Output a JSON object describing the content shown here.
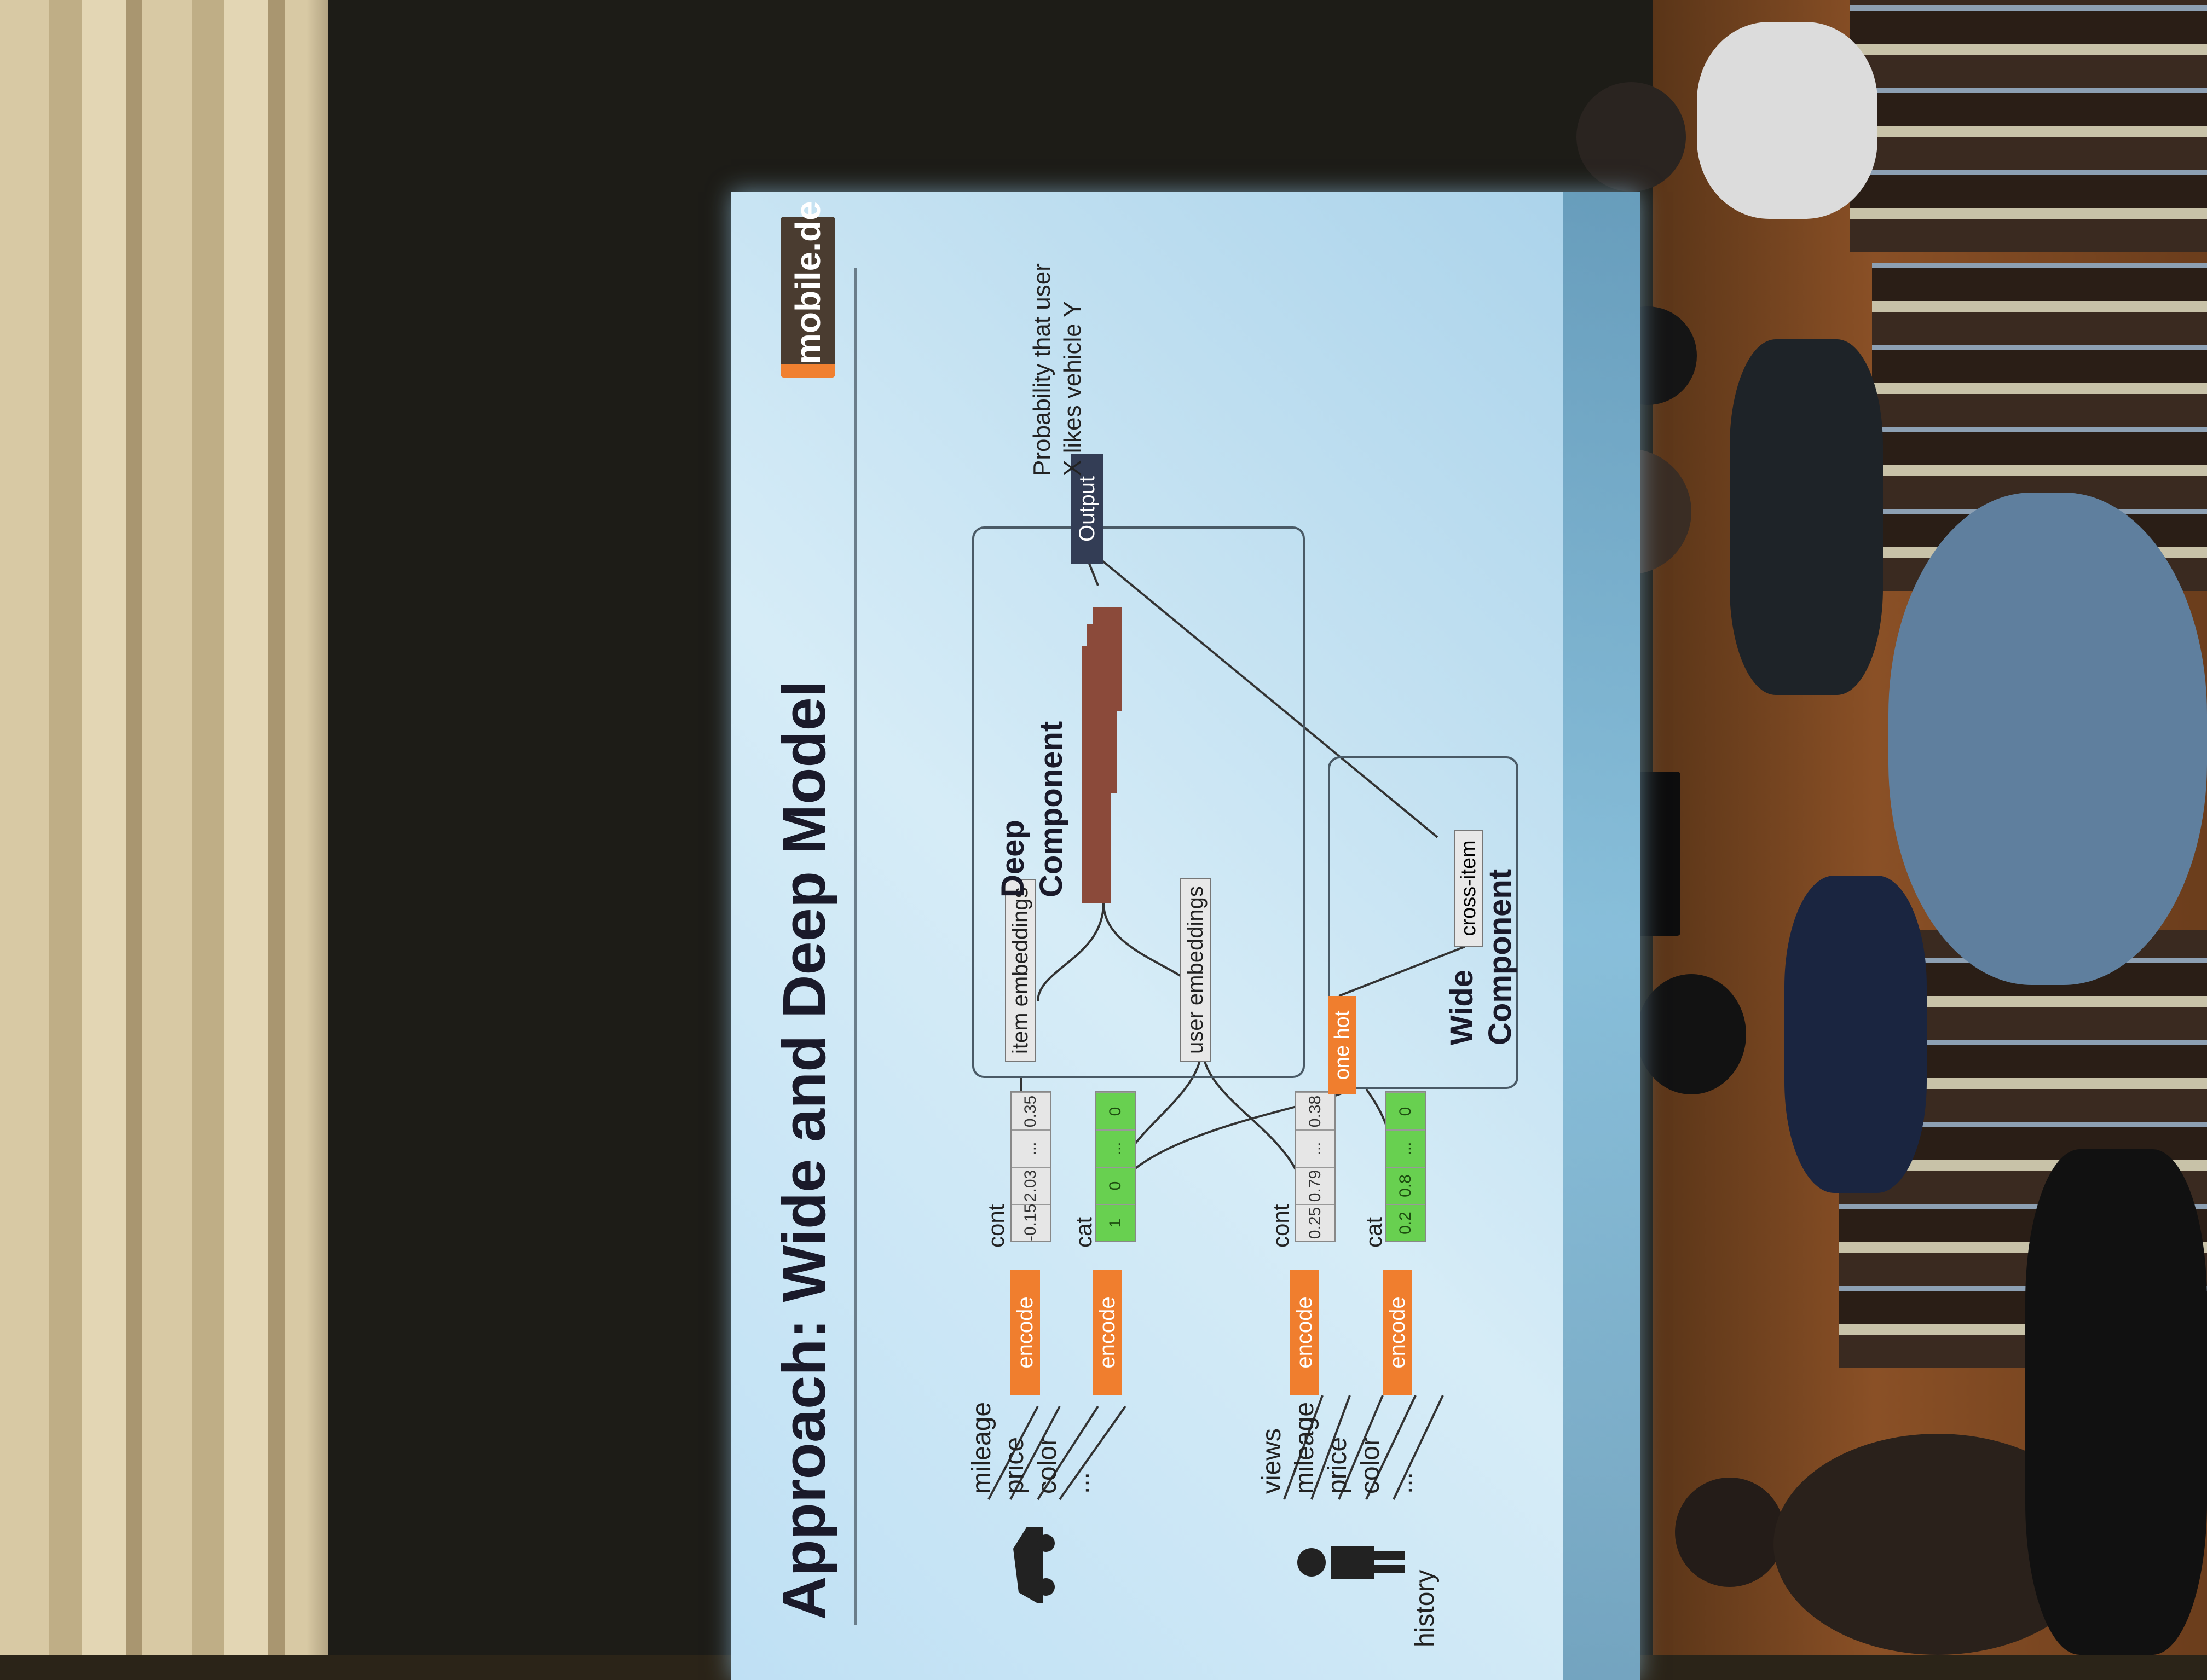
{
  "slide": {
    "title": "Approach: Wide and Deep Model",
    "logo": "mobile.de",
    "item_features": [
      "mileage",
      "price",
      "color",
      "..."
    ],
    "user_features": [
      "views",
      "mileage",
      "price",
      "color",
      "..."
    ],
    "history_label": "history",
    "encode_label": "encode",
    "item_cont": {
      "label": "cont",
      "values": [
        "-0.15",
        "2.03",
        "...",
        "0.35"
      ]
    },
    "item_cat": {
      "label": "cat",
      "values": [
        "1",
        "0",
        "...",
        "0"
      ]
    },
    "user_cont": {
      "label": "cont",
      "values": [
        "0.25",
        "0.79",
        "...",
        "0.38"
      ]
    },
    "user_cat": {
      "label": "cat",
      "values": [
        "0.2",
        "0.8",
        "...",
        "0"
      ]
    },
    "item_embeddings": "item embeddings",
    "user_embeddings": "user embeddings",
    "deep_component": "Deep Component",
    "wide_component": "Wide Component",
    "one_hot": "one hot",
    "cross_item": "cross-item",
    "output": "Output",
    "output_note": "Probability that user X likes vehicle Y"
  }
}
